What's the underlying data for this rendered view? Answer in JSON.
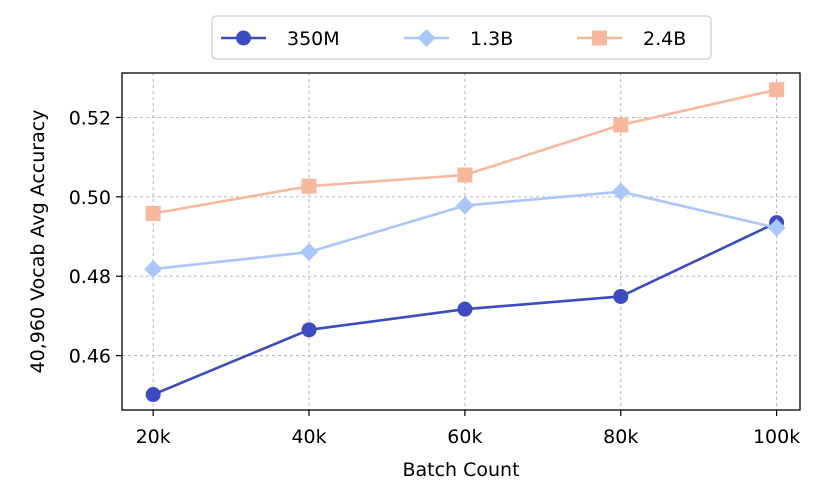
{
  "chart_data": {
    "type": "line",
    "categories": [
      "20k",
      "40k",
      "60k",
      "80k",
      "100k"
    ],
    "x": [
      20,
      40,
      60,
      80,
      100
    ],
    "xlabel": "Batch Count",
    "ylabel": "40,960 Vocab Avg Accuracy",
    "xlim": [
      16,
      103
    ],
    "ylim": [
      0.4463,
      0.5312
    ],
    "yticks": [
      0.46,
      0.48,
      0.5,
      0.52
    ],
    "ytick_labels": [
      "0.46",
      "0.48",
      "0.50",
      "0.52"
    ],
    "grid": true,
    "legend_position": "top-center",
    "series": [
      {
        "name": "350M",
        "color": "#3b4cc0",
        "marker": "circle",
        "values": [
          0.4502,
          0.4665,
          0.4717,
          0.4749,
          0.4935
        ]
      },
      {
        "name": "1.3B",
        "color": "#aac7fd",
        "marker": "diamond",
        "values": [
          0.4818,
          0.4861,
          0.4978,
          0.5013,
          0.4922
        ]
      },
      {
        "name": "2.4B",
        "color": "#f7b89c",
        "marker": "square",
        "values": [
          0.4958,
          0.5027,
          0.5055,
          0.5181,
          0.527
        ]
      }
    ]
  }
}
